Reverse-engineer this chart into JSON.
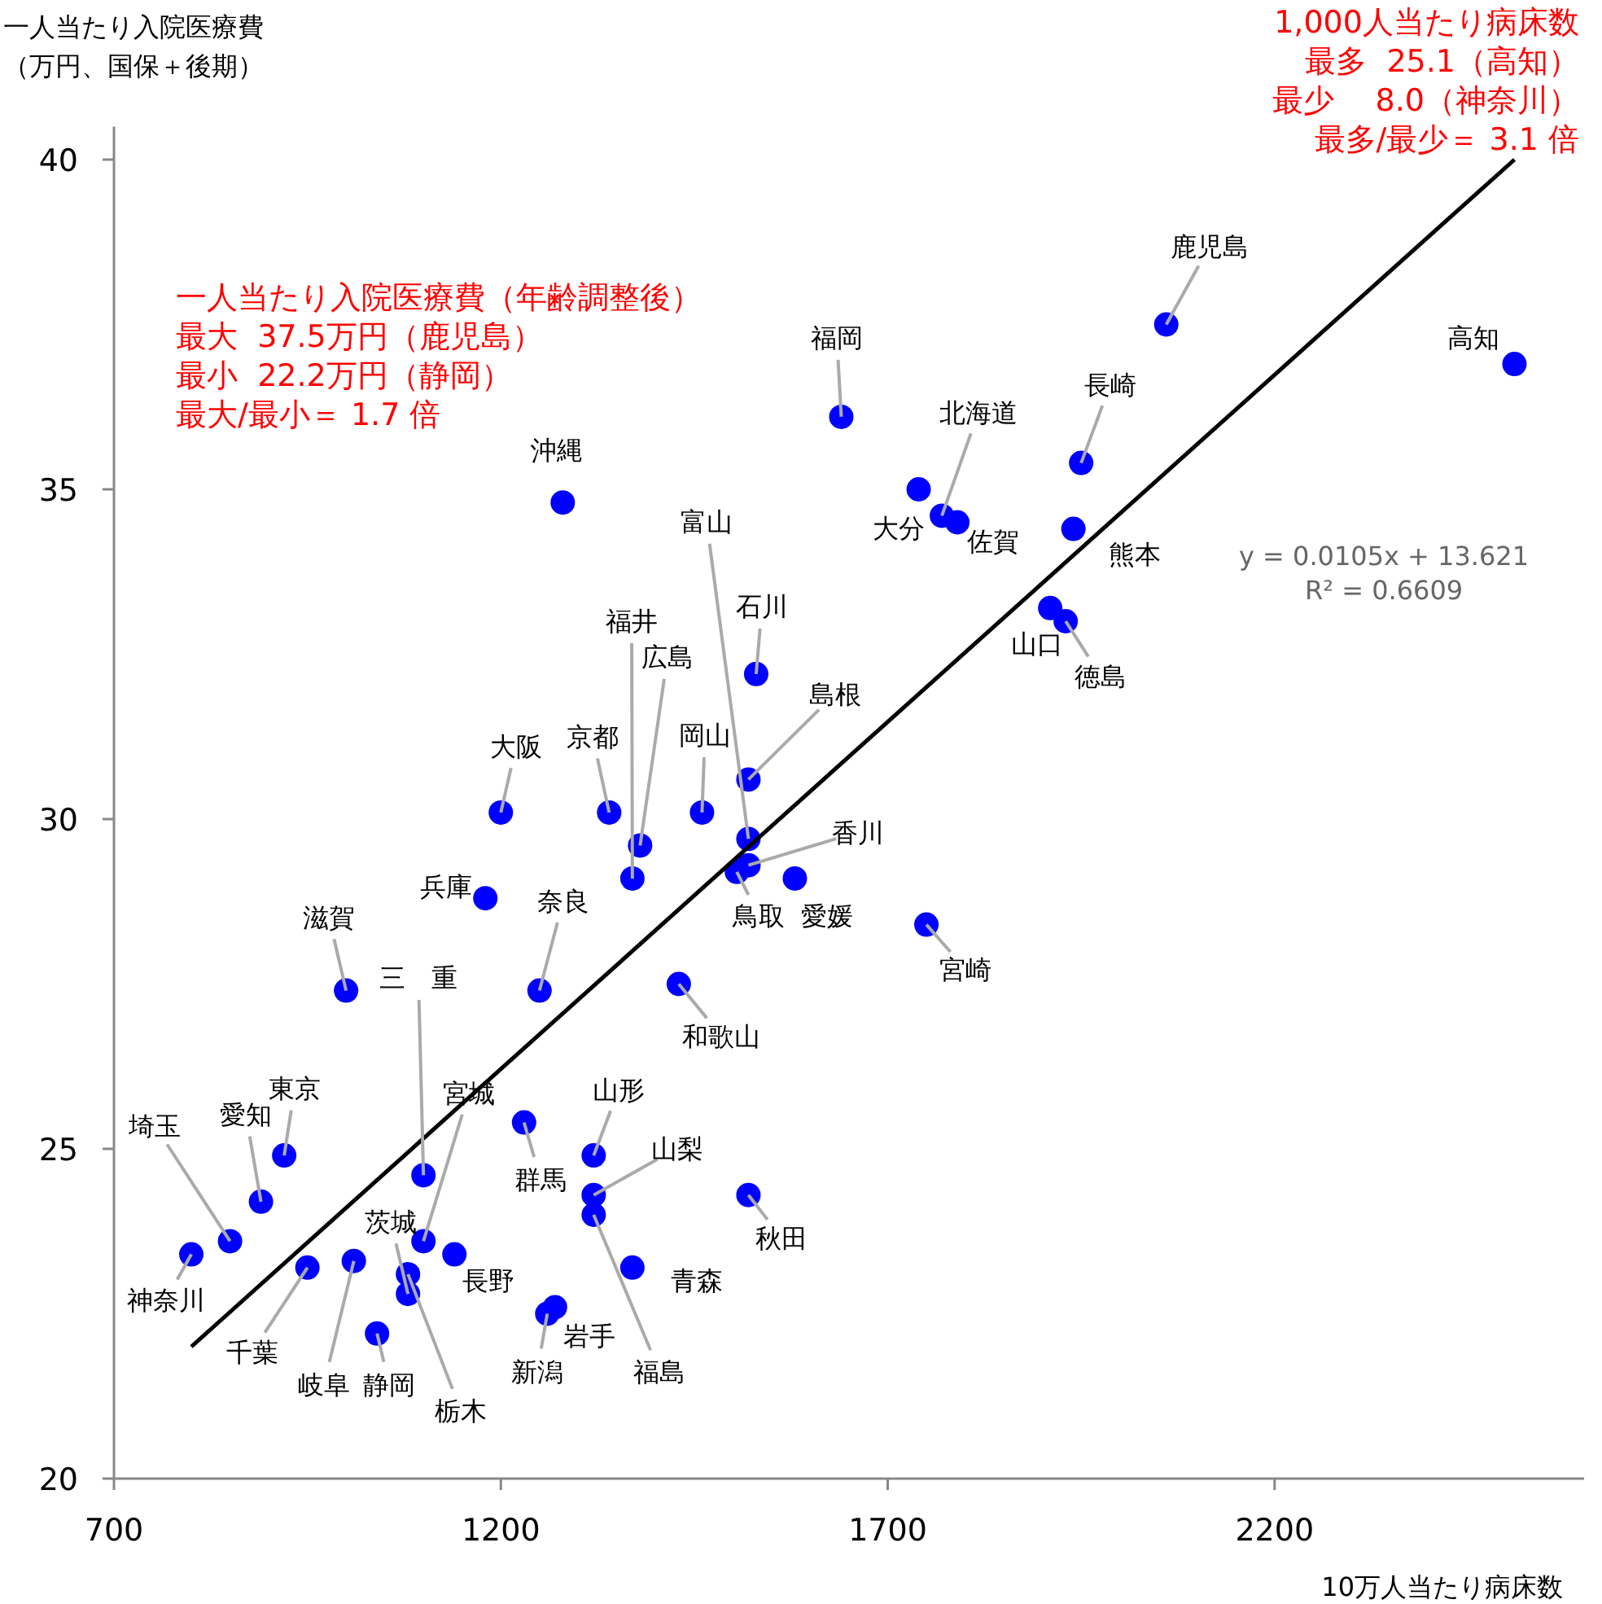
{
  "chart_data": {
    "type": "scatter",
    "xlabel": "10万人当たり病床数",
    "ylabel": "一人当たり入院医療費（万円、国保＋後期）",
    "xlim": [
      700,
      2600
    ],
    "ylim": [
      20,
      40.5
    ],
    "xticks": [
      700,
      1200,
      1700,
      2200
    ],
    "yticks": [
      20,
      25,
      30,
      35,
      40
    ],
    "grid": false,
    "series": [
      {
        "marker": "circle",
        "color": "#0000ff",
        "x": [
          2060,
          2510,
          1640,
          1950,
          1740,
          1770,
          1790,
          1940,
          1280,
          1910,
          1930,
          1530,
          1520,
          1460,
          1520,
          1505,
          1520,
          1580,
          1380,
          1370,
          1340,
          1200,
          1180,
          1250,
          1000,
          1430,
          1750,
          1100,
          1100,
          920,
          890,
          850,
          800,
          950,
          1010,
          1040,
          1140,
          1080,
          1080,
          1230,
          1320,
          1320,
          1320,
          1370,
          1270,
          1260,
          1520
        ],
        "values": [
          37.5,
          36.9,
          36.1,
          35.4,
          35.0,
          34.6,
          34.5,
          34.4,
          34.8,
          33.2,
          33.0,
          32.2,
          30.6,
          30.1,
          29.7,
          29.2,
          29.3,
          29.1,
          29.6,
          29.1,
          30.1,
          30.1,
          28.8,
          27.4,
          27.4,
          27.5,
          28.4,
          24.6,
          23.6,
          24.9,
          24.2,
          23.6,
          23.4,
          23.2,
          23.3,
          22.2,
          23.4,
          22.8,
          23.1,
          25.4,
          24.9,
          24.3,
          24.0,
          23.2,
          22.6,
          22.5,
          24.3
        ]
      },
      {
        "type": "line",
        "color": "#000000",
        "x": [
          800,
          2510
        ],
        "values": [
          22.0,
          40.0
        ]
      }
    ],
    "annotations": [
      {
        "text": "鹿児島",
        "x": 2060,
        "y": 37.5
      },
      {
        "text": "高知",
        "x": 2510,
        "y": 36.9
      },
      {
        "text": "福岡",
        "x": 1640,
        "y": 36.1
      },
      {
        "text": "長崎",
        "x": 1950,
        "y": 35.4
      },
      {
        "text": "大分",
        "x": 1740,
        "y": 35.0
      },
      {
        "text": "北海道",
        "x": 1770,
        "y": 34.6
      },
      {
        "text": "佐賀",
        "x": 1790,
        "y": 34.5
      },
      {
        "text": "熊本",
        "x": 1940,
        "y": 34.4
      },
      {
        "text": "沖縄",
        "x": 1280,
        "y": 34.8
      },
      {
        "text": "山口",
        "x": 1910,
        "y": 33.2
      },
      {
        "text": "徳島",
        "x": 1930,
        "y": 33.0
      },
      {
        "text": "石川",
        "x": 1530,
        "y": 32.2
      },
      {
        "text": "島根",
        "x": 1520,
        "y": 30.6
      },
      {
        "text": "岡山",
        "x": 1460,
        "y": 30.1
      },
      {
        "text": "富山",
        "x": 1520,
        "y": 29.7
      },
      {
        "text": "鳥取",
        "x": 1505,
        "y": 29.2
      },
      {
        "text": "香川",
        "x": 1520,
        "y": 29.3
      },
      {
        "text": "愛媛",
        "x": 1580,
        "y": 29.1
      },
      {
        "text": "広島",
        "x": 1380,
        "y": 29.6
      },
      {
        "text": "福井",
        "x": 1370,
        "y": 29.1
      },
      {
        "text": "京都",
        "x": 1340,
        "y": 30.1
      },
      {
        "text": "大阪",
        "x": 1200,
        "y": 30.1
      },
      {
        "text": "兵庫",
        "x": 1180,
        "y": 28.8
      },
      {
        "text": "奈良",
        "x": 1250,
        "y": 27.4
      },
      {
        "text": "滋賀",
        "x": 1000,
        "y": 27.4
      },
      {
        "text": "和歌山",
        "x": 1430,
        "y": 27.5
      },
      {
        "text": "宮崎",
        "x": 1750,
        "y": 28.4
      },
      {
        "text": "三　重",
        "x": 1100,
        "y": 24.6
      },
      {
        "text": "宮城",
        "x": 1100,
        "y": 23.6
      },
      {
        "text": "東京",
        "x": 920,
        "y": 24.9
      },
      {
        "text": "愛知",
        "x": 890,
        "y": 24.2
      },
      {
        "text": "埼玉",
        "x": 850,
        "y": 23.6
      },
      {
        "text": "神奈川",
        "x": 800,
        "y": 23.4
      },
      {
        "text": "千葉",
        "x": 950,
        "y": 23.2
      },
      {
        "text": "岐阜",
        "x": 1010,
        "y": 23.3
      },
      {
        "text": "静岡",
        "x": 1040,
        "y": 22.2
      },
      {
        "text": "長野",
        "x": 1140,
        "y": 23.4
      },
      {
        "text": "茨城",
        "x": 1080,
        "y": 22.8
      },
      {
        "text": "栃木",
        "x": 1080,
        "y": 23.1
      },
      {
        "text": "群馬",
        "x": 1230,
        "y": 25.4
      },
      {
        "text": "山形",
        "x": 1320,
        "y": 24.9
      },
      {
        "text": "山梨",
        "x": 1320,
        "y": 24.3
      },
      {
        "text": "福島",
        "x": 1320,
        "y": 24.0
      },
      {
        "text": "青森",
        "x": 1370,
        "y": 23.2
      },
      {
        "text": "岩手",
        "x": 1270,
        "y": 22.6
      },
      {
        "text": "新潟",
        "x": 1260,
        "y": 22.5
      },
      {
        "text": "秋田",
        "x": 1520,
        "y": 24.3
      },
      "1,000人当たり病床数",
      "最多  25.1（高知）",
      "最少　 8.0（神奈川）",
      "最多/最少＝ 3.1 倍",
      "一人当たり入院医療費（年齢調整後）",
      "最大  37.5万円（鹿児島）",
      "最小  22.2万円（静岡）",
      "最大/最小＝ 1.7 倍",
      "y = 0.0105x + 13.621",
      "R² = 0.6609"
    ]
  }
}
